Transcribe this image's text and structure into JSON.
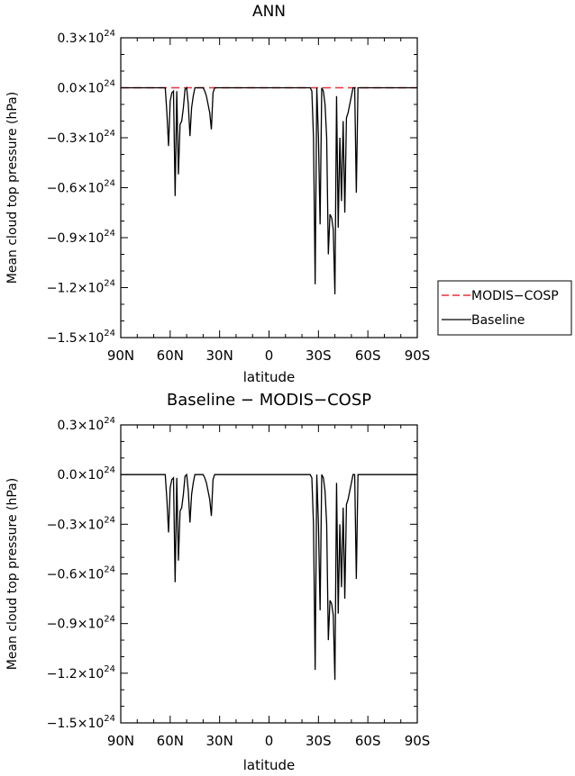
{
  "chart_data": [
    {
      "type": "line",
      "title": "ANN",
      "xlabel": "latitude",
      "ylabel": "Mean cloud top pressure (hPa)",
      "xlim": [
        -90,
        90
      ],
      "ylim": [
        -1.5,
        0.3
      ],
      "y_scale_label": "x10^24",
      "x_ticks": [
        -90,
        -60,
        -30,
        0,
        30,
        60,
        90
      ],
      "x_tick_labels": [
        "90N",
        "60N",
        "30N",
        "0",
        "30S",
        "60S",
        "90S"
      ],
      "y_ticks": [
        0.3,
        0.0,
        -0.3,
        -0.6,
        -0.9,
        -1.2,
        -1.5
      ],
      "y_tick_labels": [
        "0.3",
        "0.0",
        "-0.3",
        "-0.6",
        "-0.9",
        "-1.2",
        "-1.5"
      ],
      "y_tick_exponent": "24",
      "legend": {
        "placement": "right-outside",
        "entries": [
          "MODIS-COSP",
          "Baseline"
        ]
      },
      "series": [
        {
          "name": "MODIS-COSP",
          "color": "#e8303a",
          "dash": "dashed",
          "x": [
            -90,
            90
          ],
          "y": [
            0,
            0
          ]
        },
        {
          "name": "Baseline",
          "color": "#000000",
          "dash": "solid",
          "x": [
            -90,
            -64,
            -63,
            -62,
            -61,
            -60,
            -59,
            -58,
            -57,
            -56,
            -55,
            -54,
            -53,
            -52,
            -51,
            -50,
            -49,
            -48,
            -47,
            -46,
            -45,
            -44,
            -43,
            -42,
            -41,
            -40,
            -39,
            -38,
            -37,
            -36,
            -35,
            -34,
            -33,
            -32,
            -31,
            -30,
            -29,
            -28,
            -27,
            -26,
            25,
            26,
            27,
            28,
            29,
            30,
            31,
            32,
            33,
            34,
            35,
            36,
            37,
            38,
            39,
            40,
            41,
            42,
            43,
            44,
            45,
            46,
            47,
            48,
            49,
            50,
            51,
            52,
            53,
            54,
            55,
            56,
            57,
            58,
            59,
            90
          ],
          "y": [
            0,
            0,
            0,
            -0.15,
            -0.35,
            -0.08,
            -0.03,
            -0.02,
            -0.65,
            -0.02,
            -0.52,
            -0.22,
            -0.2,
            -0.12,
            -0.01,
            0,
            -0.1,
            -0.29,
            -0.12,
            -0.05,
            0,
            0,
            0,
            0,
            0,
            0,
            -0.02,
            -0.05,
            -0.1,
            -0.15,
            -0.25,
            -0.03,
            0,
            0,
            0,
            0,
            0,
            0,
            0,
            0,
            0,
            -0.02,
            -0.3,
            -1.18,
            0,
            -0.3,
            -0.82,
            0,
            -0.02,
            -0.1,
            -0.3,
            -1.0,
            -0.76,
            -0.78,
            -0.85,
            -1.24,
            -0.05,
            -0.84,
            -0.3,
            -0.68,
            -0.2,
            -0.75,
            -0.18,
            -0.15,
            -0.1,
            -0.05,
            0,
            0,
            -0.63,
            0,
            0,
            0,
            0,
            0,
            0,
            0
          ]
        }
      ]
    },
    {
      "type": "line",
      "title": "Baseline - MODIS-COSP",
      "xlabel": "latitude",
      "ylabel": "Mean cloud top pressure (hPa)",
      "xlim": [
        -90,
        90
      ],
      "ylim": [
        -1.5,
        0.3
      ],
      "y_scale_label": "x10^24",
      "x_ticks": [
        -90,
        -60,
        -30,
        0,
        30,
        60,
        90
      ],
      "x_tick_labels": [
        "90N",
        "60N",
        "30N",
        "0",
        "30S",
        "60S",
        "90S"
      ],
      "y_ticks": [
        0.3,
        0.0,
        -0.3,
        -0.6,
        -0.9,
        -1.2,
        -1.5
      ],
      "y_tick_labels": [
        "0.3",
        "0.0",
        "-0.3",
        "-0.6",
        "-0.9",
        "-1.2",
        "-1.5"
      ],
      "y_tick_exponent": "24",
      "series": [
        {
          "name": "Baseline - MODIS-COSP",
          "color": "#000000",
          "dash": "solid",
          "x": [
            -90,
            -64,
            -63,
            -62,
            -61,
            -60,
            -59,
            -58,
            -57,
            -56,
            -55,
            -54,
            -53,
            -52,
            -51,
            -50,
            -49,
            -48,
            -47,
            -46,
            -45,
            -44,
            -43,
            -42,
            -41,
            -40,
            -39,
            -38,
            -37,
            -36,
            -35,
            -34,
            -33,
            -32,
            -31,
            -30,
            -29,
            -28,
            -27,
            -26,
            25,
            26,
            27,
            28,
            29,
            30,
            31,
            32,
            33,
            34,
            35,
            36,
            37,
            38,
            39,
            40,
            41,
            42,
            43,
            44,
            45,
            46,
            47,
            48,
            49,
            50,
            51,
            52,
            53,
            54,
            55,
            56,
            57,
            58,
            59,
            90
          ],
          "y": [
            0,
            0,
            0,
            -0.15,
            -0.35,
            -0.08,
            -0.03,
            -0.02,
            -0.65,
            -0.02,
            -0.52,
            -0.22,
            -0.2,
            -0.12,
            -0.01,
            0,
            -0.1,
            -0.29,
            -0.12,
            -0.05,
            0,
            0,
            0,
            0,
            0,
            0,
            -0.02,
            -0.05,
            -0.1,
            -0.15,
            -0.25,
            -0.03,
            0,
            0,
            0,
            0,
            0,
            0,
            0,
            0,
            0,
            -0.02,
            -0.3,
            -1.18,
            0,
            -0.3,
            -0.82,
            0,
            -0.02,
            -0.1,
            -0.3,
            -1.0,
            -0.76,
            -0.78,
            -0.85,
            -1.24,
            -0.05,
            -0.84,
            -0.3,
            -0.68,
            -0.2,
            -0.75,
            -0.18,
            -0.15,
            -0.1,
            -0.05,
            0,
            0,
            -0.63,
            0,
            0,
            0,
            0,
            0,
            0,
            0
          ]
        }
      ]
    }
  ]
}
